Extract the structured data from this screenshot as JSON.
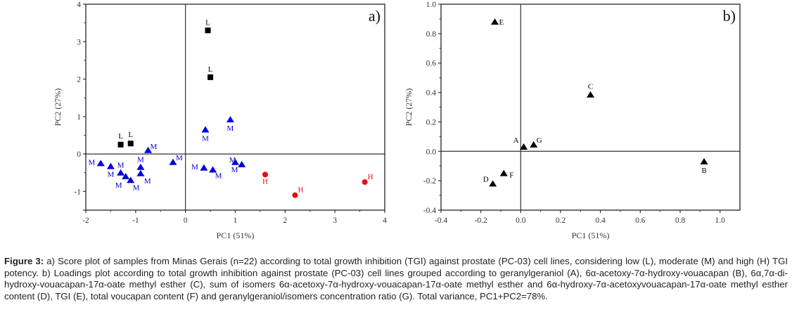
{
  "chart_data": [
    {
      "type": "scatter",
      "panel_label": "a)",
      "title": "",
      "xlabel": "PC1 (51%)",
      "ylabel": "PC2 (27%)",
      "xlim": [
        -2,
        4
      ],
      "ylim": [
        -1.5,
        4
      ],
      "xticks": [
        -2,
        -1,
        0,
        1,
        2,
        3,
        4
      ],
      "yticks": [
        -1,
        0,
        1,
        2,
        3,
        4
      ],
      "grid": false,
      "reference_lines": {
        "x": 0,
        "y": 0
      },
      "series": [
        {
          "name": "L",
          "marker": "square",
          "color": "#000000",
          "points": [
            {
              "x": 0.45,
              "y": 3.3,
              "label": "L"
            },
            {
              "x": 0.5,
              "y": 2.05,
              "label": "L"
            },
            {
              "x": -1.3,
              "y": 0.25,
              "label": "L"
            },
            {
              "x": -1.1,
              "y": 0.28,
              "label": "L"
            }
          ]
        },
        {
          "name": "M",
          "marker": "triangle",
          "color": "#0000dd",
          "points": [
            {
              "x": 0.4,
              "y": 0.65,
              "label": "M"
            },
            {
              "x": 0.9,
              "y": 0.92,
              "label": "M"
            },
            {
              "x": -0.75,
              "y": 0.1,
              "label": "M"
            },
            {
              "x": -1.7,
              "y": -0.25,
              "label": "M"
            },
            {
              "x": -1.5,
              "y": -0.33,
              "label": "M"
            },
            {
              "x": -1.3,
              "y": -0.5,
              "label": "M"
            },
            {
              "x": -1.2,
              "y": -0.6,
              "label": "M"
            },
            {
              "x": -1.1,
              "y": -0.7,
              "label": "M"
            },
            {
              "x": -0.9,
              "y": -0.35,
              "label": "M"
            },
            {
              "x": -0.9,
              "y": -0.52,
              "label": "M"
            },
            {
              "x": -0.25,
              "y": -0.22,
              "label": "M"
            },
            {
              "x": 0.37,
              "y": -0.37,
              "label": "M"
            },
            {
              "x": 0.55,
              "y": -0.42,
              "label": "M"
            },
            {
              "x": 1.0,
              "y": -0.22,
              "label": "M"
            },
            {
              "x": 1.13,
              "y": -0.28,
              "label": "M"
            }
          ]
        },
        {
          "name": "H",
          "marker": "circle",
          "color": "#e01010",
          "points": [
            {
              "x": 1.6,
              "y": -0.55,
              "label": "H"
            },
            {
              "x": 2.2,
              "y": -1.1,
              "label": "H"
            },
            {
              "x": 3.6,
              "y": -0.75,
              "label": "H"
            }
          ]
        }
      ]
    },
    {
      "type": "scatter",
      "panel_label": "b)",
      "title": "",
      "xlabel": "PC1 (51%)",
      "ylabel": "PC2 (27%)",
      "xlim": [
        -0.4,
        1.1
      ],
      "ylim": [
        -0.4,
        1.0
      ],
      "xticks": [
        -0.4,
        -0.2,
        0.0,
        0.2,
        0.4,
        0.6,
        0.8,
        1.0
      ],
      "yticks": [
        -0.4,
        -0.2,
        0.0,
        0.2,
        0.4,
        0.6,
        0.8,
        1.0
      ],
      "grid": false,
      "reference_lines": {
        "x": 0,
        "y": 0
      },
      "series": [
        {
          "name": "Loadings",
          "marker": "triangle",
          "color": "#000000",
          "points": [
            {
              "x": 0.015,
              "y": 0.03,
              "label": "A"
            },
            {
              "x": 0.92,
              "y": -0.07,
              "label": "B"
            },
            {
              "x": 0.35,
              "y": 0.385,
              "label": "C"
            },
            {
              "x": -0.14,
              "y": -0.22,
              "label": "D"
            },
            {
              "x": -0.13,
              "y": 0.88,
              "label": "E"
            },
            {
              "x": -0.085,
              "y": -0.15,
              "label": "F"
            },
            {
              "x": 0.065,
              "y": 0.045,
              "label": "G"
            }
          ]
        }
      ]
    }
  ],
  "caption": {
    "lead": "Figure 3:",
    "text": " a) Score plot of samples from Minas Gerais (n=22) according to total growth inhibition (TGI) against prostate (PC-03) cell lines, considering low (L), moderate (M) and high (H) TGI potency. b) Loadings plot according to total growth inhibition against prostate (PC-03) cell lines grouped according to geranylgeraniol (A), 6α-acetoxy-7α-hydroxy-vouacapan (B), 6α,7α-di-hydroxy-vouacapan-17α-oate methyl esther (C), sum of isomers 6α-acetoxy-7α-hydroxy-vouacapan-17α-oate methyl esther and 6α-hydroxy-7α-acetoxyvouacapan-17α-oate methyl esther content (D), TGI (E), total voucapan content (F) and geranylgeraniol/isomers concentration ratio (G). Total variance, PC1+PC2=78%."
  }
}
